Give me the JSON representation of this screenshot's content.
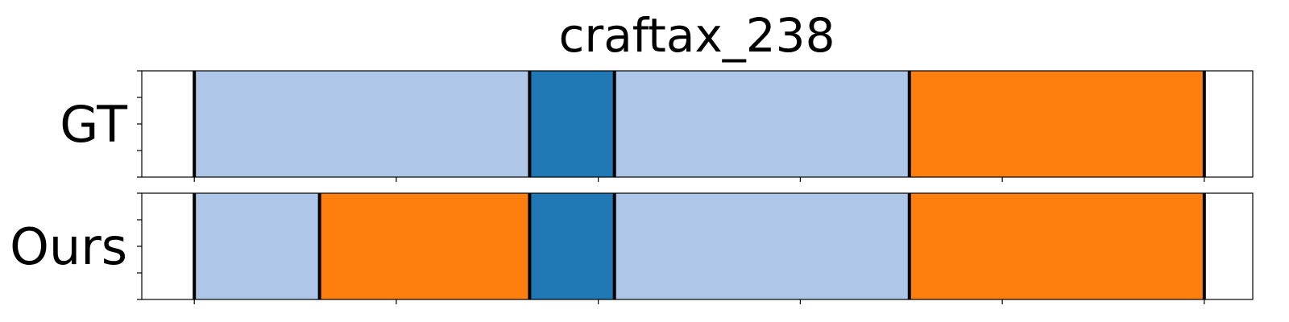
{
  "chart_data": {
    "type": "segmentation",
    "title": "craftax_238",
    "xlim": [
      0,
      275
    ],
    "rows": [
      {
        "label": "GT",
        "segments": [
          {
            "start": 13,
            "end": 96,
            "class": "light-blue"
          },
          {
            "start": 96,
            "end": 117,
            "class": "blue"
          },
          {
            "start": 117,
            "end": 190,
            "class": "light-blue"
          },
          {
            "start": 190,
            "end": 263,
            "class": "orange"
          }
        ]
      },
      {
        "label": "Ours",
        "segments": [
          {
            "start": 13,
            "end": 44,
            "class": "light-blue"
          },
          {
            "start": 44,
            "end": 96,
            "class": "orange"
          },
          {
            "start": 96,
            "end": 117,
            "class": "blue"
          },
          {
            "start": 117,
            "end": 190,
            "class": "light-blue"
          },
          {
            "start": 190,
            "end": 263,
            "class": "orange"
          }
        ]
      }
    ],
    "x_ticks": [
      13,
      63,
      113,
      163,
      213,
      263
    ],
    "tick_labels_visible": false,
    "colors": {
      "light-blue": "#aec7e8",
      "blue": "#1f77b4",
      "orange": "#ff7f0e"
    },
    "boundary_color": "#000000"
  }
}
